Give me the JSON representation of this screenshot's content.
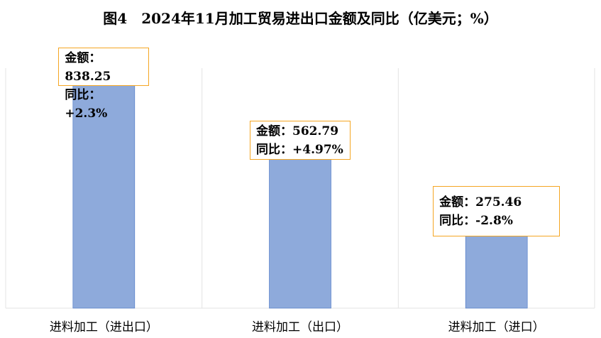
{
  "chart_data": {
    "type": "bar",
    "title": "图4　2024年11月加工贸易进出口金额及同比（亿美元；%）",
    "categories": [
      "进料加工（进出口）",
      "进料加工（出口）",
      "进料加工（进口）"
    ],
    "values": [
      838.25,
      562.79,
      275.46
    ],
    "yoy": [
      "+2.3%",
      "+4.97%",
      "-2.8%"
    ],
    "amount_prefix": "金额：",
    "yoy_prefix": "同比：",
    "ylim": [
      0,
      900
    ],
    "grid": false,
    "bar_color": "#8eaadb",
    "label_border_color": "#f5a623"
  }
}
